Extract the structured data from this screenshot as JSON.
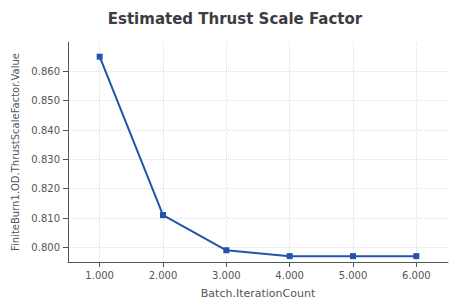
{
  "chart_data": {
    "type": "line",
    "title": "Estimated Thrust Scale Factor",
    "xlabel": "Batch.IterationCount",
    "ylabel": "FiniteBurn1.OD.ThrustScaleFactor.Value",
    "x": [
      1,
      2,
      3,
      4,
      5,
      6
    ],
    "values": [
      0.865,
      0.811,
      0.799,
      0.797,
      0.797,
      0.797
    ],
    "color": "#2255aa",
    "marker": "square",
    "xlim": [
      0.5,
      6.5
    ],
    "ylim": [
      0.795,
      0.87
    ],
    "xticks": [
      {
        "value": 1,
        "label": "1.000"
      },
      {
        "value": 2,
        "label": "2.000"
      },
      {
        "value": 3,
        "label": "3.000"
      },
      {
        "value": 4,
        "label": "4.000"
      },
      {
        "value": 5,
        "label": "5.000"
      },
      {
        "value": 6,
        "label": "6.000"
      }
    ],
    "yticks": [
      {
        "value": 0.8,
        "label": "0.800"
      },
      {
        "value": 0.81,
        "label": "0.810"
      },
      {
        "value": 0.82,
        "label": "0.820"
      },
      {
        "value": 0.83,
        "label": "0.830"
      },
      {
        "value": 0.84,
        "label": "0.840"
      },
      {
        "value": 0.85,
        "label": "0.850"
      },
      {
        "value": 0.86,
        "label": "0.860"
      }
    ],
    "grid": true
  }
}
